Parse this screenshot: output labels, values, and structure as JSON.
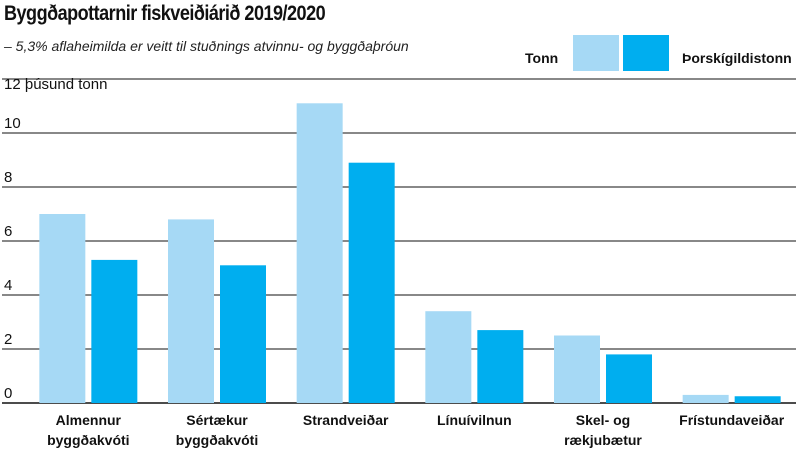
{
  "title": "Byggðapottarnir fiskveiðiárið 2019/2020",
  "subtitle": "– 5,3% aflaheimilda er veitt til stuðnings atvinnu- og byggðaþróun",
  "colors": {
    "tonn": "#a6d9f5",
    "thorsk": "#00aeef",
    "grid": "#111111"
  },
  "chart_data": {
    "type": "bar",
    "title": "Byggðapottarnir fiskveiðiárið 2019/2020",
    "subtitle": "– 5,3% aflaheimilda er veitt til stuðnings atvinnu- og byggðaþróun",
    "ylabel": "12 þúsund tonn",
    "xlabel": "",
    "ylim": [
      0,
      12
    ],
    "yticks": [
      0,
      2,
      4,
      6,
      8,
      10,
      12
    ],
    "grid": true,
    "legend_position": "top-right",
    "categories": [
      [
        "Almennur",
        "byggðakvóti"
      ],
      [
        "Sértækur",
        "byggðakvóti"
      ],
      [
        "Strandveiðar"
      ],
      [
        "Línuívilnun"
      ],
      [
        "Skel- og",
        "rækjubætur"
      ],
      [
        "Frístundaveiðar"
      ]
    ],
    "series": [
      {
        "name": "Tonn",
        "color": "#a6d9f5",
        "values": [
          7.0,
          6.8,
          11.1,
          3.4,
          2.5,
          0.3
        ]
      },
      {
        "name": "Þorskígildistonn",
        "color": "#00aeef",
        "values": [
          5.3,
          5.1,
          8.9,
          2.7,
          1.8,
          0.25
        ]
      }
    ]
  }
}
